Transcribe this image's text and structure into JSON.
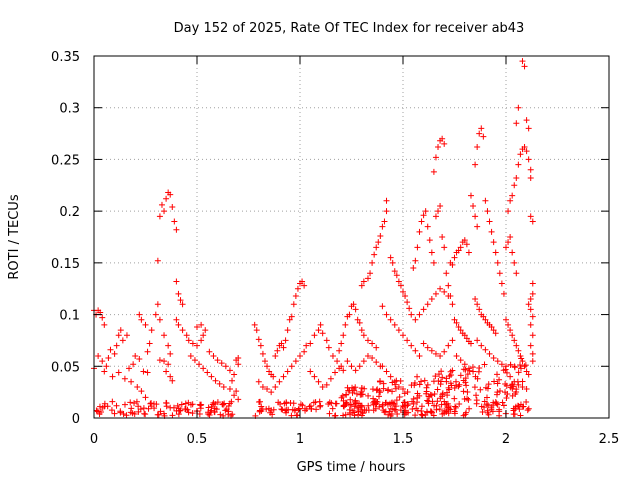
{
  "chart_data": {
    "type": "scatter",
    "title": "Day 152 of 2025, Rate Of TEC Index for receiver ab43",
    "xlabel": "GPS time / hours",
    "ylabel": "ROTI / TECUs",
    "xlim": [
      0,
      2.5
    ],
    "ylim": [
      0,
      0.35
    ],
    "x_ticks": [
      0,
      0.5,
      1,
      1.5,
      2,
      2.5
    ],
    "y_ticks": [
      0,
      0.05,
      0.1,
      0.15,
      0.2,
      0.25,
      0.3,
      0.35
    ],
    "x_tick_labels": [
      "0",
      "0.5",
      "1",
      "1.5",
      "2",
      "2.5"
    ],
    "y_tick_labels": [
      "0",
      "0.05",
      "0.1",
      "0.15",
      "0.2",
      "0.25",
      "0.3",
      "0.35"
    ],
    "grid": true,
    "marker": "plus",
    "color": "#ff0000",
    "points": [
      [
        0.0,
        0.048
      ],
      [
        0.0,
        0.104
      ],
      [
        0.01,
        0.1
      ],
      [
        0.02,
        0.104
      ],
      [
        0.03,
        0.102
      ],
      [
        0.04,
        0.097
      ],
      [
        0.05,
        0.09
      ],
      [
        0.02,
        0.06
      ],
      [
        0.04,
        0.055
      ],
      [
        0.06,
        0.05
      ],
      [
        0.07,
        0.058
      ],
      [
        0.08,
        0.066
      ],
      [
        0.1,
        0.062
      ],
      [
        0.11,
        0.07
      ],
      [
        0.12,
        0.08
      ],
      [
        0.13,
        0.085
      ],
      [
        0.14,
        0.075
      ],
      [
        0.16,
        0.08
      ],
      [
        0.05,
        0.045
      ],
      [
        0.09,
        0.04
      ],
      [
        0.12,
        0.044
      ],
      [
        0.15,
        0.038
      ],
      [
        0.17,
        0.048
      ],
      [
        0.19,
        0.052
      ],
      [
        0.2,
        0.06
      ],
      [
        0.22,
        0.057
      ],
      [
        0.24,
        0.045
      ],
      [
        0.26,
        0.044
      ],
      [
        0.18,
        0.035
      ],
      [
        0.21,
        0.03
      ],
      [
        0.23,
        0.026
      ],
      [
        0.25,
        0.02
      ],
      [
        0.26,
        0.064
      ],
      [
        0.27,
        0.072
      ],
      [
        0.28,
        0.085
      ],
      [
        0.3,
        0.1
      ],
      [
        0.31,
        0.11
      ],
      [
        0.32,
        0.095
      ],
      [
        0.34,
        0.08
      ],
      [
        0.36,
        0.07
      ],
      [
        0.37,
        0.062
      ],
      [
        0.22,
        0.1
      ],
      [
        0.23,
        0.095
      ],
      [
        0.25,
        0.09
      ],
      [
        0.31,
        0.152
      ],
      [
        0.32,
        0.195
      ],
      [
        0.33,
        0.206
      ],
      [
        0.34,
        0.2
      ],
      [
        0.35,
        0.212
      ],
      [
        0.36,
        0.218
      ],
      [
        0.37,
        0.216
      ],
      [
        0.38,
        0.204
      ],
      [
        0.39,
        0.19
      ],
      [
        0.4,
        0.182
      ],
      [
        0.4,
        0.132
      ],
      [
        0.41,
        0.12
      ],
      [
        0.42,
        0.114
      ],
      [
        0.43,
        0.11
      ],
      [
        0.32,
        0.056
      ],
      [
        0.34,
        0.055
      ],
      [
        0.36,
        0.052
      ],
      [
        0.35,
        0.045
      ],
      [
        0.37,
        0.04
      ],
      [
        0.38,
        0.036
      ],
      [
        0.4,
        0.095
      ],
      [
        0.41,
        0.09
      ],
      [
        0.43,
        0.085
      ],
      [
        0.45,
        0.08
      ],
      [
        0.46,
        0.075
      ],
      [
        0.48,
        0.072
      ],
      [
        0.5,
        0.07
      ],
      [
        0.52,
        0.075
      ],
      [
        0.53,
        0.08
      ],
      [
        0.54,
        0.085
      ],
      [
        0.52,
        0.09
      ],
      [
        0.5,
        0.088
      ],
      [
        0.47,
        0.06
      ],
      [
        0.49,
        0.056
      ],
      [
        0.51,
        0.052
      ],
      [
        0.53,
        0.048
      ],
      [
        0.55,
        0.044
      ],
      [
        0.57,
        0.04
      ],
      [
        0.59,
        0.036
      ],
      [
        0.61,
        0.033
      ],
      [
        0.63,
        0.03
      ],
      [
        0.56,
        0.064
      ],
      [
        0.58,
        0.06
      ],
      [
        0.6,
        0.056
      ],
      [
        0.62,
        0.053
      ],
      [
        0.64,
        0.05
      ],
      [
        0.66,
        0.046
      ],
      [
        0.68,
        0.042
      ],
      [
        0.69,
        0.056
      ],
      [
        0.7,
        0.052
      ],
      [
        0.7,
        0.058
      ],
      [
        0.67,
        0.036
      ],
      [
        0.66,
        0.028
      ],
      [
        0.68,
        0.022
      ],
      [
        0.7,
        0.018
      ],
      [
        0.69,
        0.026
      ],
      [
        0.78,
        0.09
      ],
      [
        0.79,
        0.085
      ],
      [
        0.8,
        0.076
      ],
      [
        0.81,
        0.07
      ],
      [
        0.82,
        0.062
      ],
      [
        0.83,
        0.055
      ],
      [
        0.84,
        0.05
      ],
      [
        0.85,
        0.045
      ],
      [
        0.86,
        0.042
      ],
      [
        0.87,
        0.04
      ],
      [
        0.88,
        0.06
      ],
      [
        0.89,
        0.065
      ],
      [
        0.9,
        0.07
      ],
      [
        0.91,
        0.072
      ],
      [
        0.92,
        0.068
      ],
      [
        0.93,
        0.075
      ],
      [
        0.94,
        0.085
      ],
      [
        0.95,
        0.095
      ],
      [
        0.96,
        0.098
      ],
      [
        0.97,
        0.11
      ],
      [
        0.98,
        0.118
      ],
      [
        0.99,
        0.125
      ],
      [
        1.0,
        0.13
      ],
      [
        1.01,
        0.132
      ],
      [
        1.02,
        0.128
      ],
      [
        0.8,
        0.035
      ],
      [
        0.82,
        0.03
      ],
      [
        0.84,
        0.028
      ],
      [
        0.86,
        0.025
      ],
      [
        0.88,
        0.03
      ],
      [
        0.9,
        0.035
      ],
      [
        0.92,
        0.04
      ],
      [
        0.94,
        0.045
      ],
      [
        0.96,
        0.05
      ],
      [
        0.98,
        0.055
      ],
      [
        1.0,
        0.06
      ],
      [
        1.02,
        0.064
      ],
      [
        1.03,
        0.07
      ],
      [
        1.05,
        0.072
      ],
      [
        1.07,
        0.08
      ],
      [
        1.09,
        0.085
      ],
      [
        1.1,
        0.09
      ],
      [
        1.11,
        0.082
      ],
      [
        1.13,
        0.075
      ],
      [
        1.14,
        0.068
      ],
      [
        1.16,
        0.06
      ],
      [
        1.18,
        0.055
      ],
      [
        1.2,
        0.05
      ],
      [
        1.05,
        0.045
      ],
      [
        1.07,
        0.04
      ],
      [
        1.09,
        0.035
      ],
      [
        1.11,
        0.03
      ],
      [
        1.13,
        0.032
      ],
      [
        1.15,
        0.038
      ],
      [
        1.17,
        0.044
      ],
      [
        1.19,
        0.048
      ],
      [
        1.21,
        0.046
      ],
      [
        1.19,
        0.065
      ],
      [
        1.2,
        0.072
      ],
      [
        1.21,
        0.08
      ],
      [
        1.22,
        0.09
      ],
      [
        1.23,
        0.098
      ],
      [
        1.24,
        0.1
      ],
      [
        1.25,
        0.108
      ],
      [
        1.26,
        0.11
      ],
      [
        1.27,
        0.105
      ],
      [
        1.28,
        0.095
      ],
      [
        1.29,
        0.092
      ],
      [
        1.3,
        0.085
      ],
      [
        1.31,
        0.08
      ],
      [
        1.33,
        0.075
      ],
      [
        1.35,
        0.072
      ],
      [
        1.37,
        0.068
      ],
      [
        1.23,
        0.055
      ],
      [
        1.25,
        0.05
      ],
      [
        1.27,
        0.046
      ],
      [
        1.29,
        0.05
      ],
      [
        1.31,
        0.055
      ],
      [
        1.33,
        0.06
      ],
      [
        1.35,
        0.058
      ],
      [
        1.37,
        0.054
      ],
      [
        1.39,
        0.05
      ],
      [
        1.3,
        0.128
      ],
      [
        1.31,
        0.132
      ],
      [
        1.33,
        0.135
      ],
      [
        1.34,
        0.14
      ],
      [
        1.35,
        0.15
      ],
      [
        1.36,
        0.158
      ],
      [
        1.37,
        0.165
      ],
      [
        1.38,
        0.17
      ],
      [
        1.39,
        0.176
      ],
      [
        1.4,
        0.185
      ],
      [
        1.41,
        0.19
      ],
      [
        1.42,
        0.2
      ],
      [
        1.42,
        0.21
      ],
      [
        1.44,
        0.155
      ],
      [
        1.45,
        0.15
      ],
      [
        1.46,
        0.142
      ],
      [
        1.47,
        0.138
      ],
      [
        1.48,
        0.132
      ],
      [
        1.49,
        0.128
      ],
      [
        1.5,
        0.122
      ],
      [
        1.51,
        0.118
      ],
      [
        1.52,
        0.112
      ],
      [
        1.53,
        0.106
      ],
      [
        1.54,
        0.1
      ],
      [
        1.4,
        0.108
      ],
      [
        1.42,
        0.1
      ],
      [
        1.44,
        0.095
      ],
      [
        1.46,
        0.09
      ],
      [
        1.48,
        0.085
      ],
      [
        1.5,
        0.08
      ],
      [
        1.52,
        0.075
      ],
      [
        1.54,
        0.07
      ],
      [
        1.56,
        0.065
      ],
      [
        1.58,
        0.06
      ],
      [
        1.4,
        0.05
      ],
      [
        1.42,
        0.045
      ],
      [
        1.44,
        0.04
      ],
      [
        1.46,
        0.035
      ],
      [
        1.48,
        0.03
      ],
      [
        1.5,
        0.028
      ],
      [
        1.55,
        0.145
      ],
      [
        1.56,
        0.152
      ],
      [
        1.57,
        0.165
      ],
      [
        1.58,
        0.18
      ],
      [
        1.59,
        0.19
      ],
      [
        1.6,
        0.196
      ],
      [
        1.61,
        0.2
      ],
      [
        1.62,
        0.185
      ],
      [
        1.63,
        0.172
      ],
      [
        1.64,
        0.16
      ],
      [
        1.65,
        0.15
      ],
      [
        1.66,
        0.195
      ],
      [
        1.67,
        0.2
      ],
      [
        1.68,
        0.205
      ],
      [
        1.69,
        0.175
      ],
      [
        1.7,
        0.165
      ],
      [
        1.71,
        0.14
      ],
      [
        1.72,
        0.128
      ],
      [
        1.73,
        0.118
      ],
      [
        1.74,
        0.11
      ],
      [
        1.56,
        0.095
      ],
      [
        1.58,
        0.1
      ],
      [
        1.6,
        0.105
      ],
      [
        1.62,
        0.11
      ],
      [
        1.64,
        0.115
      ],
      [
        1.66,
        0.12
      ],
      [
        1.68,
        0.125
      ],
      [
        1.7,
        0.122
      ],
      [
        1.72,
        0.118
      ],
      [
        1.6,
        0.072
      ],
      [
        1.62,
        0.068
      ],
      [
        1.64,
        0.065
      ],
      [
        1.66,
        0.062
      ],
      [
        1.68,
        0.06
      ],
      [
        1.7,
        0.064
      ],
      [
        1.72,
        0.07
      ],
      [
        1.74,
        0.075
      ],
      [
        1.66,
        0.252
      ],
      [
        1.67,
        0.262
      ],
      [
        1.68,
        0.268
      ],
      [
        1.69,
        0.27
      ],
      [
        1.7,
        0.265
      ],
      [
        1.65,
        0.238
      ],
      [
        1.73,
        0.15
      ],
      [
        1.74,
        0.148
      ],
      [
        1.75,
        0.155
      ],
      [
        1.76,
        0.16
      ],
      [
        1.77,
        0.162
      ],
      [
        1.78,
        0.165
      ],
      [
        1.79,
        0.17
      ],
      [
        1.8,
        0.172
      ],
      [
        1.81,
        0.168
      ],
      [
        1.82,
        0.16
      ],
      [
        1.75,
        0.095
      ],
      [
        1.76,
        0.092
      ],
      [
        1.77,
        0.088
      ],
      [
        1.78,
        0.085
      ],
      [
        1.79,
        0.082
      ],
      [
        1.8,
        0.08
      ],
      [
        1.81,
        0.077
      ],
      [
        1.82,
        0.074
      ],
      [
        1.83,
        0.072
      ],
      [
        1.76,
        0.06
      ],
      [
        1.78,
        0.056
      ],
      [
        1.8,
        0.052
      ],
      [
        1.82,
        0.048
      ],
      [
        1.84,
        0.045
      ],
      [
        1.83,
        0.215
      ],
      [
        1.84,
        0.205
      ],
      [
        1.85,
        0.195
      ],
      [
        1.86,
        0.185
      ],
      [
        1.85,
        0.245
      ],
      [
        1.86,
        0.262
      ],
      [
        1.87,
        0.275
      ],
      [
        1.88,
        0.28
      ],
      [
        1.89,
        0.272
      ],
      [
        1.9,
        0.21
      ],
      [
        1.91,
        0.2
      ],
      [
        1.92,
        0.19
      ],
      [
        1.93,
        0.18
      ],
      [
        1.94,
        0.17
      ],
      [
        1.95,
        0.16
      ],
      [
        1.96,
        0.15
      ],
      [
        1.97,
        0.14
      ],
      [
        1.98,
        0.13
      ],
      [
        1.99,
        0.12
      ],
      [
        1.85,
        0.115
      ],
      [
        1.86,
        0.11
      ],
      [
        1.87,
        0.105
      ],
      [
        1.88,
        0.1
      ],
      [
        1.89,
        0.098
      ],
      [
        1.9,
        0.095
      ],
      [
        1.91,
        0.092
      ],
      [
        1.92,
        0.09
      ],
      [
        1.93,
        0.088
      ],
      [
        1.94,
        0.085
      ],
      [
        1.95,
        0.082
      ],
      [
        1.86,
        0.075
      ],
      [
        1.88,
        0.07
      ],
      [
        1.9,
        0.066
      ],
      [
        1.92,
        0.062
      ],
      [
        1.94,
        0.058
      ],
      [
        1.96,
        0.055
      ],
      [
        1.98,
        0.052
      ],
      [
        2.0,
        0.05
      ],
      [
        2.0,
        0.165
      ],
      [
        2.01,
        0.17
      ],
      [
        2.02,
        0.175
      ],
      [
        2.03,
        0.16
      ],
      [
        2.04,
        0.15
      ],
      [
        2.05,
        0.14
      ],
      [
        2.01,
        0.2
      ],
      [
        2.02,
        0.21
      ],
      [
        2.03,
        0.215
      ],
      [
        2.04,
        0.225
      ],
      [
        2.05,
        0.232
      ],
      [
        2.06,
        0.245
      ],
      [
        2.07,
        0.255
      ],
      [
        2.08,
        0.26
      ],
      [
        2.09,
        0.262
      ],
      [
        2.1,
        0.258
      ],
      [
        2.11,
        0.25
      ],
      [
        2.05,
        0.285
      ],
      [
        2.06,
        0.3
      ],
      [
        2.08,
        0.345
      ],
      [
        2.09,
        0.34
      ],
      [
        2.1,
        0.288
      ],
      [
        2.11,
        0.28
      ],
      [
        2.12,
        0.24
      ],
      [
        2.12,
        0.232
      ],
      [
        2.12,
        0.195
      ],
      [
        2.13,
        0.19
      ],
      [
        2.13,
        0.13
      ],
      [
        2.13,
        0.12
      ],
      [
        2.12,
        0.115
      ],
      [
        2.11,
        0.11
      ],
      [
        2.12,
        0.105
      ],
      [
        2.13,
        0.098
      ],
      [
        2.12,
        0.09
      ],
      [
        2.13,
        0.08
      ],
      [
        2.12,
        0.07
      ],
      [
        2.13,
        0.062
      ],
      [
        2.13,
        0.055
      ],
      [
        2.0,
        0.095
      ],
      [
        2.01,
        0.09
      ],
      [
        2.02,
        0.085
      ],
      [
        2.03,
        0.08
      ],
      [
        2.04,
        0.075
      ],
      [
        2.05,
        0.07
      ],
      [
        2.06,
        0.065
      ],
      [
        2.07,
        0.06
      ],
      [
        2.08,
        0.055
      ],
      [
        2.09,
        0.05
      ],
      [
        2.1,
        0.045
      ],
      [
        2.11,
        0.042
      ],
      [
        2.02,
        0.04
      ],
      [
        2.04,
        0.035
      ],
      [
        2.06,
        0.032
      ],
      [
        2.08,
        0.03
      ],
      [
        2.1,
        0.028
      ]
    ],
    "baseline_band": {
      "segments": [
        [
          0.0,
          0.7
        ],
        [
          0.78,
          2.12
        ]
      ],
      "y_range": [
        0.002,
        0.016
      ],
      "count": 320
    },
    "rising_band": {
      "x_range": [
        1.2,
        2.1
      ],
      "y_start": [
        0.01,
        0.03
      ],
      "y_end": [
        0.02,
        0.06
      ],
      "count": 180
    }
  }
}
